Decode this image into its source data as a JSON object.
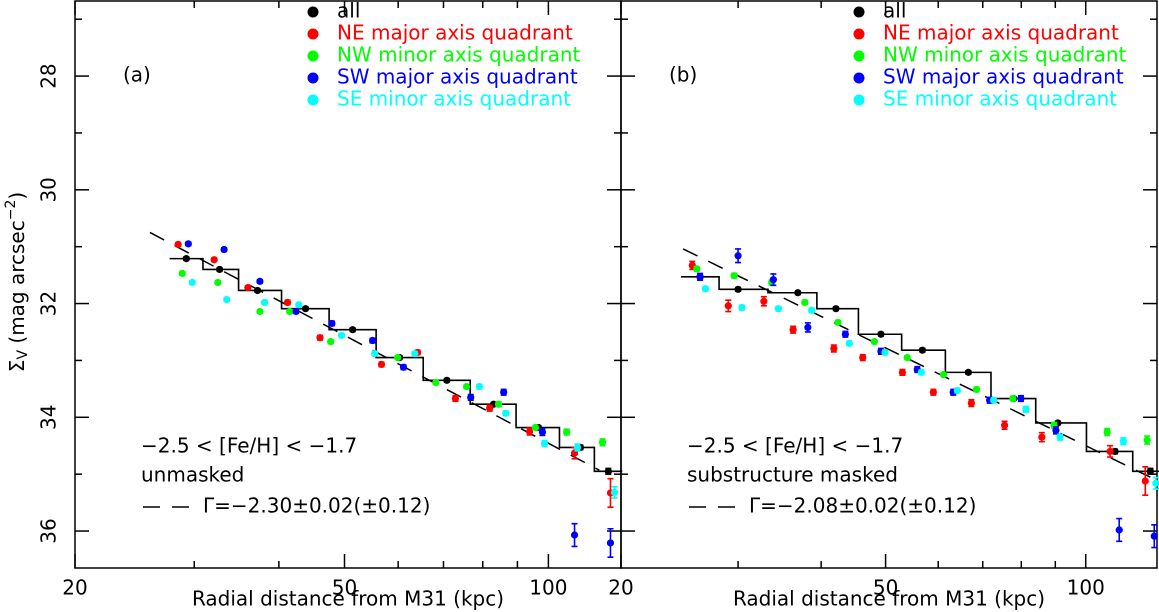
{
  "chart_data": [
    {
      "type": "scatter",
      "panel_label": "(a)",
      "x_label": "Radial distance from M31 (kpc)",
      "y_label": [
        "Σ",
        "V",
        " (mag arcsec",
        "−2",
        ")"
      ],
      "annotations": {
        "feh_range": "−2.5 < [Fe/H] < −1.7",
        "mask": "unmasked",
        "fit": "Γ=−2.30±0.02(±0.12)"
      },
      "log_x": true,
      "xlim": [
        20,
        128
      ],
      "ylim": [
        36.65,
        26.68
      ],
      "xticks": [
        20,
        50,
        100
      ],
      "xminor_ticks": [
        30,
        40,
        60,
        70,
        80,
        90
      ],
      "yticks": [
        28,
        30,
        32,
        34,
        36
      ],
      "yminor_ticks": [
        27,
        29,
        31,
        33,
        35
      ],
      "show_ytick_labels": true,
      "fit_line": {
        "x": [
          25.8,
          118.9
        ],
        "y": [
          30.75,
          34.93
        ]
      },
      "series": [
        {
          "name": "all",
          "color": "#000000",
          "step": true,
          "x": [
            29.2,
            32.7,
            37.2,
            43.8,
            51.4,
            60.3,
            70.8,
            83.0,
            96.7,
            111.5,
            122.6
          ],
          "values": [
            31.21,
            31.4,
            31.77,
            32.09,
            32.46,
            32.95,
            33.35,
            33.77,
            34.18,
            34.53,
            34.95
          ],
          "errors": [
            0.03,
            0.03,
            0.03,
            0.03,
            0.03,
            0.03,
            0.03,
            0.03,
            0.03,
            0.04,
            0.05
          ]
        },
        {
          "name": "NE major axis quadrant",
          "color": "#ff0000",
          "x": [
            28.4,
            32.1,
            36.0,
            41.2,
            46.0,
            56.7,
            64.1,
            72.9,
            81.9,
            93.8,
            109.3,
            123.5
          ],
          "values": [
            30.96,
            31.23,
            31.72,
            31.98,
            32.6,
            33.07,
            32.86,
            33.67,
            33.84,
            34.25,
            34.63,
            35.33
          ],
          "errors": [
            0.03,
            0.03,
            0.03,
            0.04,
            0.04,
            0.04,
            0.04,
            0.05,
            0.05,
            0.06,
            0.1,
            0.25
          ]
        },
        {
          "name": "NW minor axis quadrant",
          "color": "#00ff00",
          "x": [
            28.8,
            32.5,
            37.5,
            41.5,
            47.7,
            59.9,
            68.2,
            75.7,
            84.4,
            95.7,
            106.4,
            120.2
          ],
          "values": [
            31.47,
            31.63,
            32.14,
            32.14,
            32.67,
            32.95,
            33.39,
            33.46,
            33.77,
            34.18,
            34.26,
            34.44
          ],
          "errors": [
            0.03,
            0.03,
            0.03,
            0.03,
            0.03,
            0.03,
            0.03,
            0.03,
            0.04,
            0.04,
            0.05,
            0.06
          ]
        },
        {
          "name": "SW major axis quadrant",
          "color": "#0000ff",
          "x": [
            29.4,
            33.2,
            37.5,
            42.4,
            47.9,
            55.0,
            61.1,
            76.8,
            85.9,
            98.0,
            109.3,
            123.5
          ],
          "values": [
            30.95,
            31.05,
            31.61,
            32.14,
            32.35,
            32.65,
            33.12,
            33.65,
            33.56,
            34.26,
            36.07,
            36.21
          ],
          "errors": [
            0.03,
            0.03,
            0.03,
            0.03,
            0.04,
            0.04,
            0.04,
            0.05,
            0.05,
            0.06,
            0.2,
            0.25
          ]
        },
        {
          "name": "SE minor axis quadrant",
          "color": "#00ffff",
          "x": [
            29.8,
            33.5,
            38.1,
            42.8,
            49.5,
            55.4,
            63.5,
            79.1,
            86.5,
            98.7,
            110.4,
            125.2
          ],
          "values": [
            31.63,
            31.93,
            31.98,
            32.02,
            32.56,
            32.88,
            32.88,
            33.46,
            33.93,
            34.46,
            34.53,
            35.32
          ],
          "errors": [
            0.03,
            0.03,
            0.03,
            0.03,
            0.03,
            0.03,
            0.03,
            0.04,
            0.04,
            0.05,
            0.06,
            0.1
          ]
        }
      ]
    },
    {
      "type": "scatter",
      "panel_label": "(b)",
      "x_label": "Radial distance from M31 (kpc)",
      "annotations": {
        "feh_range": "−2.5 < [Fe/H] < −1.7",
        "mask": "substructure masked",
        "fit": "Γ=−2.08±0.02(±0.12)"
      },
      "log_x": true,
      "xlim": [
        20,
        128
      ],
      "ylim": [
        36.65,
        26.68
      ],
      "xticks": [
        20,
        50,
        100
      ],
      "xminor_ticks": [
        30,
        40,
        60,
        70,
        80,
        90
      ],
      "yticks": [
        28,
        30,
        32,
        34,
        36
      ],
      "yminor_ticks": [
        27,
        29,
        31,
        33,
        35
      ],
      "show_ytick_labels": false,
      "fit_line": {
        "x": [
          24.8,
          125.9
        ],
        "y": [
          31.04,
          35.07
        ]
      },
      "series": [
        {
          "name": "all",
          "color": "#000000",
          "step": true,
          "x": [
            26.3,
            30.0,
            36.9,
            42.1,
            49.2,
            56.8,
            66.6,
            77.9,
            90.8,
            110.7,
            125.1
          ],
          "values": [
            31.53,
            31.75,
            31.81,
            32.09,
            32.54,
            32.82,
            33.21,
            33.67,
            34.1,
            34.6,
            34.95
          ],
          "errors": [
            0.03,
            0.03,
            0.03,
            0.03,
            0.03,
            0.03,
            0.03,
            0.03,
            0.03,
            0.04,
            0.05
          ]
        },
        {
          "name": "NE major axis quadrant",
          "color": "#ff0000",
          "x": [
            25.6,
            29.0,
            32.8,
            36.3,
            41.8,
            46.2,
            53.0,
            59.0,
            67.3,
            75.5,
            85.9,
            108.8,
            122.9
          ],
          "values": [
            31.33,
            32.04,
            31.96,
            32.46,
            32.79,
            32.95,
            33.21,
            33.56,
            33.75,
            34.14,
            34.35,
            34.6,
            35.12
          ],
          "errors": [
            0.07,
            0.1,
            0.08,
            0.06,
            0.06,
            0.05,
            0.05,
            0.05,
            0.06,
            0.07,
            0.08,
            0.1,
            0.25
          ]
        },
        {
          "name": "NW minor axis quadrant",
          "color": "#00ff00",
          "x": [
            26.0,
            29.6,
            33.7,
            37.8,
            42.4,
            48.1,
            53.9,
            61.1,
            68.5,
            77.7,
            89.6,
            107.7,
            123.7
          ],
          "values": [
            31.39,
            31.51,
            31.63,
            31.98,
            32.33,
            32.67,
            32.95,
            33.25,
            33.51,
            33.67,
            34.14,
            34.26,
            34.4
          ],
          "errors": [
            0.04,
            0.04,
            0.04,
            0.04,
            0.03,
            0.03,
            0.03,
            0.03,
            0.04,
            0.04,
            0.05,
            0.06,
            0.07
          ]
        },
        {
          "name": "SW major axis quadrant",
          "color": "#0000ff",
          "x": [
            26.3,
            30.0,
            33.9,
            38.2,
            43.5,
            49.2,
            55.8,
            63.2,
            71.7,
            79.9,
            90.2,
            112.3,
            126.8
          ],
          "values": [
            31.53,
            31.16,
            31.58,
            32.42,
            32.54,
            32.84,
            33.16,
            33.56,
            33.7,
            33.67,
            34.23,
            35.98,
            36.09
          ],
          "errors": [
            0.06,
            0.12,
            0.1,
            0.08,
            0.05,
            0.05,
            0.05,
            0.05,
            0.05,
            0.05,
            0.06,
            0.2,
            0.2
          ]
        },
        {
          "name": "SE minor axis quadrant",
          "color": "#00ffff",
          "x": [
            26.8,
            30.4,
            34.5,
            38.7,
            44.1,
            49.9,
            56.6,
            64.1,
            72.7,
            81.3,
            91.5,
            113.9,
            127.5
          ],
          "values": [
            31.74,
            32.07,
            32.09,
            32.12,
            32.7,
            32.86,
            33.21,
            33.53,
            33.7,
            33.86,
            34.35,
            34.42,
            35.16
          ],
          "errors": [
            0.04,
            0.04,
            0.04,
            0.04,
            0.04,
            0.04,
            0.04,
            0.04,
            0.04,
            0.05,
            0.05,
            0.06,
            0.1
          ]
        }
      ]
    }
  ]
}
